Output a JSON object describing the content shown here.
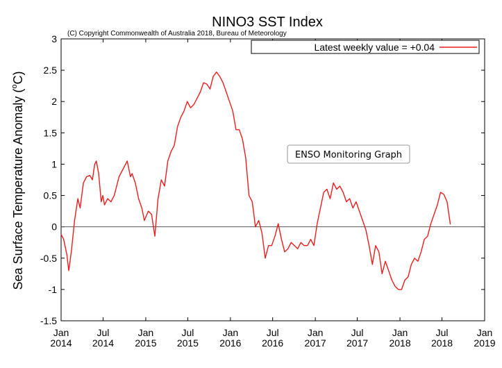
{
  "chart_data": {
    "type": "line",
    "title": "NINO3 SST Index",
    "subtitle": "(C) Copyright Commonwealth of Australia 2018, Bureau of Meteorology",
    "ylabel": "Sea Surface Temperature Anomaly (°C)",
    "ylabel_parts": {
      "main": "Sea Surface Temperature Anomaly (",
      "sup": "o",
      "unit": "C)"
    },
    "xlabel": "",
    "badge": "ENSO Monitoring Graph",
    "xlim": [
      "2014-01-01",
      "2019-01-01"
    ],
    "ylim": [
      -1.5,
      3
    ],
    "grid": false,
    "legend_position": "top-right",
    "zero_line": true,
    "yticks": [
      3,
      2.5,
      2,
      1.5,
      1,
      0.5,
      0,
      -0.5,
      -1,
      -1.5
    ],
    "ytick_labels": [
      "3",
      "2.5",
      "2",
      "1.5",
      "1",
      "0.5",
      "0",
      "-0.5",
      "-1",
      "-1.5"
    ],
    "xticks": [
      {
        "date": "2014-01-01",
        "line1": "Jan",
        "line2": "2014"
      },
      {
        "date": "2014-07-01",
        "line1": "Jul",
        "line2": "2014"
      },
      {
        "date": "2015-01-01",
        "line1": "Jan",
        "line2": "2015"
      },
      {
        "date": "2015-07-01",
        "line1": "Jul",
        "line2": "2015"
      },
      {
        "date": "2016-01-01",
        "line1": "Jan",
        "line2": "2016"
      },
      {
        "date": "2016-07-01",
        "line1": "Jul",
        "line2": "2016"
      },
      {
        "date": "2017-01-01",
        "line1": "Jan",
        "line2": "2017"
      },
      {
        "date": "2017-07-01",
        "line1": "Jul",
        "line2": "2017"
      },
      {
        "date": "2018-01-01",
        "line1": "Jan",
        "line2": "2018"
      },
      {
        "date": "2018-07-01",
        "line1": "Jul",
        "line2": "2018"
      },
      {
        "date": "2019-01-01",
        "line1": "Jan",
        "line2": "2019"
      }
    ],
    "series": [
      {
        "name": "Latest weekly value = +0.04",
        "color": "#ee1c1c",
        "points": [
          [
            "2014-01-01",
            -0.12
          ],
          [
            "2014-01-12",
            -0.2
          ],
          [
            "2014-01-26",
            -0.45
          ],
          [
            "2014-02-03",
            -0.7
          ],
          [
            "2014-02-14",
            -0.4
          ],
          [
            "2014-02-28",
            0.1
          ],
          [
            "2014-03-14",
            0.45
          ],
          [
            "2014-03-24",
            0.3
          ],
          [
            "2014-04-07",
            0.7
          ],
          [
            "2014-04-21",
            0.8
          ],
          [
            "2014-05-05",
            0.82
          ],
          [
            "2014-05-16",
            0.75
          ],
          [
            "2014-05-26",
            1.0
          ],
          [
            "2014-06-02",
            1.05
          ],
          [
            "2014-06-12",
            0.85
          ],
          [
            "2014-06-23",
            0.4
          ],
          [
            "2014-06-30",
            0.5
          ],
          [
            "2014-07-07",
            0.35
          ],
          [
            "2014-07-21",
            0.45
          ],
          [
            "2014-08-04",
            0.4
          ],
          [
            "2014-08-18",
            0.5
          ],
          [
            "2014-09-08",
            0.8
          ],
          [
            "2014-09-29",
            0.95
          ],
          [
            "2014-10-13",
            1.05
          ],
          [
            "2014-10-27",
            0.8
          ],
          [
            "2014-11-03",
            0.85
          ],
          [
            "2014-11-17",
            0.7
          ],
          [
            "2014-12-01",
            0.45
          ],
          [
            "2014-12-15",
            0.3
          ],
          [
            "2014-12-26",
            0.1
          ],
          [
            "2015-01-12",
            0.25
          ],
          [
            "2015-01-26",
            0.2
          ],
          [
            "2015-02-09",
            -0.15
          ],
          [
            "2015-02-23",
            0.45
          ],
          [
            "2015-03-09",
            0.75
          ],
          [
            "2015-03-23",
            0.65
          ],
          [
            "2015-04-06",
            1.05
          ],
          [
            "2015-04-20",
            1.2
          ],
          [
            "2015-05-04",
            1.3
          ],
          [
            "2015-05-18",
            1.6
          ],
          [
            "2015-06-01",
            1.75
          ],
          [
            "2015-06-15",
            1.85
          ],
          [
            "2015-06-29",
            2.0
          ],
          [
            "2015-07-13",
            1.9
          ],
          [
            "2015-07-27",
            1.95
          ],
          [
            "2015-08-10",
            2.05
          ],
          [
            "2015-08-24",
            2.15
          ],
          [
            "2015-09-07",
            2.3
          ],
          [
            "2015-09-21",
            2.28
          ],
          [
            "2015-10-05",
            2.2
          ],
          [
            "2015-10-19",
            2.4
          ],
          [
            "2015-11-02",
            2.47
          ],
          [
            "2015-11-16",
            2.4
          ],
          [
            "2015-11-30",
            2.3
          ],
          [
            "2015-12-14",
            2.15
          ],
          [
            "2015-12-28",
            2.0
          ],
          [
            "2016-01-11",
            1.85
          ],
          [
            "2016-01-25",
            1.55
          ],
          [
            "2016-02-08",
            1.55
          ],
          [
            "2016-02-22",
            1.4
          ],
          [
            "2016-03-07",
            1.1
          ],
          [
            "2016-03-21",
            0.5
          ],
          [
            "2016-04-04",
            0.4
          ],
          [
            "2016-04-18",
            0.0
          ],
          [
            "2016-05-02",
            0.1
          ],
          [
            "2016-05-16",
            -0.1
          ],
          [
            "2016-05-30",
            -0.5
          ],
          [
            "2016-06-13",
            -0.3
          ],
          [
            "2016-06-27",
            -0.3
          ],
          [
            "2016-07-11",
            -0.15
          ],
          [
            "2016-07-25",
            0.05
          ],
          [
            "2016-08-08",
            -0.2
          ],
          [
            "2016-08-22",
            -0.4
          ],
          [
            "2016-09-05",
            -0.35
          ],
          [
            "2016-09-19",
            -0.25
          ],
          [
            "2016-10-03",
            -0.3
          ],
          [
            "2016-10-17",
            -0.35
          ],
          [
            "2016-10-31",
            -0.25
          ],
          [
            "2016-11-14",
            -0.3
          ],
          [
            "2016-11-28",
            -0.3
          ],
          [
            "2016-12-12",
            -0.2
          ],
          [
            "2016-12-26",
            -0.3
          ],
          [
            "2017-01-09",
            0.05
          ],
          [
            "2017-01-23",
            0.3
          ],
          [
            "2017-02-06",
            0.55
          ],
          [
            "2017-02-20",
            0.6
          ],
          [
            "2017-03-06",
            0.45
          ],
          [
            "2017-03-20",
            0.7
          ],
          [
            "2017-04-03",
            0.6
          ],
          [
            "2017-04-17",
            0.65
          ],
          [
            "2017-05-01",
            0.55
          ],
          [
            "2017-05-15",
            0.4
          ],
          [
            "2017-05-29",
            0.45
          ],
          [
            "2017-06-12",
            0.3
          ],
          [
            "2017-06-26",
            0.4
          ],
          [
            "2017-07-10",
            0.25
          ],
          [
            "2017-07-24",
            0.1
          ],
          [
            "2017-08-07",
            -0.05
          ],
          [
            "2017-08-21",
            -0.3
          ],
          [
            "2017-09-04",
            -0.6
          ],
          [
            "2017-09-18",
            -0.3
          ],
          [
            "2017-10-02",
            -0.4
          ],
          [
            "2017-10-16",
            -0.75
          ],
          [
            "2017-10-30",
            -0.55
          ],
          [
            "2017-11-13",
            -0.7
          ],
          [
            "2017-11-27",
            -0.85
          ],
          [
            "2017-12-11",
            -0.95
          ],
          [
            "2017-12-25",
            -1.0
          ],
          [
            "2018-01-08",
            -1.0
          ],
          [
            "2018-01-22",
            -0.85
          ],
          [
            "2018-02-05",
            -0.8
          ],
          [
            "2018-02-19",
            -0.6
          ],
          [
            "2018-03-05",
            -0.5
          ],
          [
            "2018-03-19",
            -0.55
          ],
          [
            "2018-04-02",
            -0.4
          ],
          [
            "2018-04-16",
            -0.2
          ],
          [
            "2018-04-30",
            -0.15
          ],
          [
            "2018-05-14",
            0.05
          ],
          [
            "2018-05-28",
            0.2
          ],
          [
            "2018-06-11",
            0.35
          ],
          [
            "2018-06-25",
            0.55
          ],
          [
            "2018-07-09",
            0.52
          ],
          [
            "2018-07-23",
            0.4
          ],
          [
            "2018-08-06",
            0.04
          ]
        ]
      }
    ]
  }
}
